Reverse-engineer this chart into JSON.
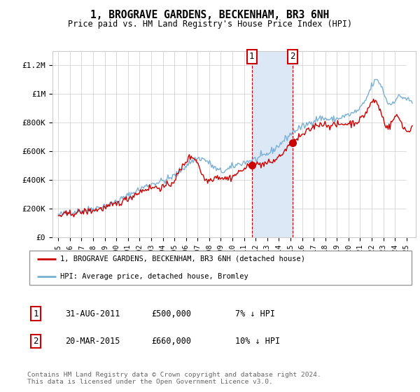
{
  "title": "1, BROGRAVE GARDENS, BECKENHAM, BR3 6NH",
  "subtitle": "Price paid vs. HM Land Registry's House Price Index (HPI)",
  "ylabel_ticks": [
    "£0",
    "£200K",
    "£400K",
    "£600K",
    "£800K",
    "£1M",
    "£1.2M"
  ],
  "ytick_values": [
    0,
    200000,
    400000,
    600000,
    800000,
    1000000,
    1200000
  ],
  "ylim": [
    0,
    1300000
  ],
  "xlim_start": 1994.5,
  "xlim_end": 2025.8,
  "t1": 2011.667,
  "t2": 2015.208,
  "price1": 500000,
  "price2": 660000,
  "shade_color": "#dce8f5",
  "hpi_color": "#7ab0d4",
  "price_color": "#cc0000",
  "grid_color": "#cccccc",
  "legend_label_price": "1, BROGRAVE GARDENS, BECKENHAM, BR3 6NH (detached house)",
  "legend_label_hpi": "HPI: Average price, detached house, Bromley",
  "table_rows": [
    {
      "num": "1",
      "date": "31-AUG-2011",
      "price": "£500,000",
      "pct": "7% ↓ HPI"
    },
    {
      "num": "2",
      "date": "20-MAR-2015",
      "price": "£660,000",
      "pct": "10% ↓ HPI"
    }
  ],
  "footnote": "Contains HM Land Registry data © Crown copyright and database right 2024.\nThis data is licensed under the Open Government Licence v3.0."
}
